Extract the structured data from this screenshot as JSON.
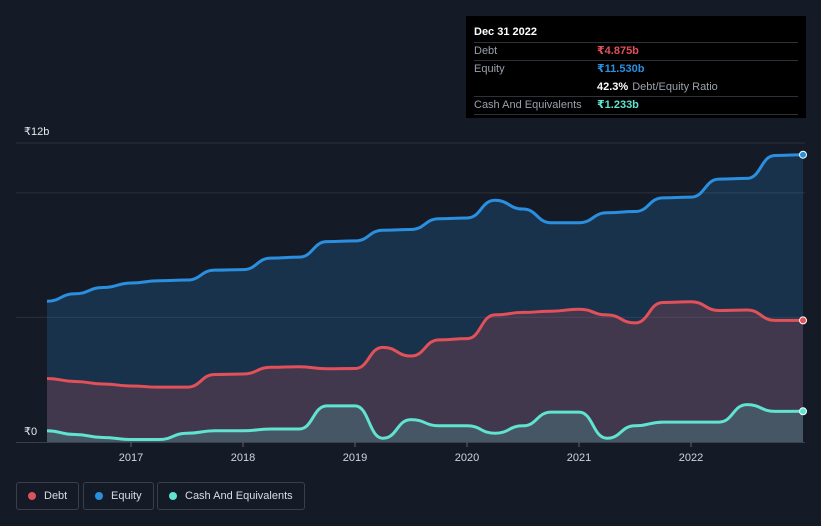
{
  "tooltip": {
    "date": "Dec 31 2022",
    "debt_label": "Debt",
    "debt_value": "₹4.875b",
    "equity_label": "Equity",
    "equity_value": "₹11.530b",
    "ratio_value": "42.3%",
    "ratio_label": "Debt/Equity Ratio",
    "cash_label": "Cash And Equivalents",
    "cash_value": "₹1.233b"
  },
  "legend": {
    "debt": "Debt",
    "equity": "Equity",
    "cash": "Cash And Equivalents"
  },
  "colors": {
    "debt": "#e2505a",
    "equity": "#2b8fe0",
    "cash": "#60e3d1",
    "background": "#151b26"
  },
  "chart_data": {
    "type": "area",
    "title": "",
    "x_unit": "year",
    "xlim": [
      2016.25,
      2023.0
    ],
    "ylim": [
      0,
      12
    ],
    "y_axis_labels": [
      "₹12b",
      "₹0"
    ],
    "y_ticks": [
      0,
      12
    ],
    "x_ticks": [
      2017,
      2018,
      2019,
      2020,
      2021,
      2022
    ],
    "x_tick_labels": [
      "2017",
      "2018",
      "2019",
      "2020",
      "2021",
      "2022"
    ],
    "series": [
      {
        "name": "Equity",
        "color": "#2b8fe0",
        "points": [
          [
            2016.25,
            5.65
          ],
          [
            2016.5,
            5.95
          ],
          [
            2016.75,
            6.2
          ],
          [
            2017.0,
            6.38
          ],
          [
            2017.25,
            6.47
          ],
          [
            2017.5,
            6.5
          ],
          [
            2017.75,
            6.9
          ],
          [
            2018.0,
            6.92
          ],
          [
            2018.25,
            7.38
          ],
          [
            2018.5,
            7.42
          ],
          [
            2018.75,
            8.04
          ],
          [
            2019.0,
            8.07
          ],
          [
            2019.25,
            8.5
          ],
          [
            2019.5,
            8.53
          ],
          [
            2019.75,
            8.96
          ],
          [
            2020.0,
            8.99
          ],
          [
            2020.25,
            9.7
          ],
          [
            2020.5,
            9.35
          ],
          [
            2020.75,
            8.8
          ],
          [
            2021.0,
            8.8
          ],
          [
            2021.25,
            9.2
          ],
          [
            2021.5,
            9.25
          ],
          [
            2021.75,
            9.8
          ],
          [
            2022.0,
            9.83
          ],
          [
            2022.25,
            10.55
          ],
          [
            2022.5,
            10.58
          ],
          [
            2022.75,
            11.5
          ],
          [
            2023.0,
            11.53
          ]
        ]
      },
      {
        "name": "Debt",
        "color": "#e2505a",
        "points": [
          [
            2016.25,
            2.55
          ],
          [
            2016.5,
            2.43
          ],
          [
            2016.75,
            2.33
          ],
          [
            2017.0,
            2.25
          ],
          [
            2017.25,
            2.2
          ],
          [
            2017.5,
            2.2
          ],
          [
            2017.75,
            2.71
          ],
          [
            2018.0,
            2.73
          ],
          [
            2018.25,
            3.0
          ],
          [
            2018.5,
            3.02
          ],
          [
            2018.75,
            2.94
          ],
          [
            2019.0,
            2.95
          ],
          [
            2019.25,
            3.8
          ],
          [
            2019.5,
            3.45
          ],
          [
            2019.75,
            4.1
          ],
          [
            2020.0,
            4.15
          ],
          [
            2020.25,
            5.1
          ],
          [
            2020.5,
            5.2
          ],
          [
            2020.75,
            5.25
          ],
          [
            2021.0,
            5.33
          ],
          [
            2021.25,
            5.1
          ],
          [
            2021.5,
            4.78
          ],
          [
            2021.75,
            5.6
          ],
          [
            2022.0,
            5.63
          ],
          [
            2022.25,
            5.28
          ],
          [
            2022.5,
            5.3
          ],
          [
            2022.75,
            4.88
          ],
          [
            2023.0,
            4.88
          ]
        ]
      },
      {
        "name": "Cash And Equivalents",
        "color": "#60e3d1",
        "points": [
          [
            2016.25,
            0.45
          ],
          [
            2016.5,
            0.3
          ],
          [
            2016.75,
            0.18
          ],
          [
            2017.0,
            0.1
          ],
          [
            2017.25,
            0.1
          ],
          [
            2017.5,
            0.35
          ],
          [
            2017.75,
            0.45
          ],
          [
            2018.0,
            0.45
          ],
          [
            2018.25,
            0.52
          ],
          [
            2018.5,
            0.52
          ],
          [
            2018.75,
            1.45
          ],
          [
            2019.0,
            1.45
          ],
          [
            2019.25,
            0.15
          ],
          [
            2019.5,
            0.9
          ],
          [
            2019.75,
            0.65
          ],
          [
            2020.0,
            0.65
          ],
          [
            2020.25,
            0.35
          ],
          [
            2020.5,
            0.65
          ],
          [
            2020.75,
            1.2
          ],
          [
            2021.0,
            1.2
          ],
          [
            2021.25,
            0.15
          ],
          [
            2021.5,
            0.65
          ],
          [
            2021.75,
            0.8
          ],
          [
            2022.0,
            0.8
          ],
          [
            2022.25,
            0.8
          ],
          [
            2022.5,
            1.5
          ],
          [
            2022.75,
            1.23
          ],
          [
            2023.0,
            1.233
          ]
        ]
      }
    ]
  }
}
